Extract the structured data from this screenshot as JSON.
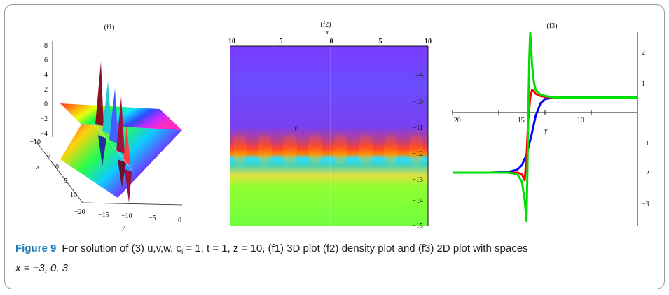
{
  "figure": {
    "label": "Figure 9",
    "caption_line1": "For solution of (3) u,v,w, c",
    "caption_sub": "i",
    "caption_line1b": " = 1, t = 1, z = 10, (f1) 3D plot (f2) density plot and (f3) 2D plot with spaces",
    "caption_line2": "x = −3, 0, 3"
  },
  "panels": {
    "f1": {
      "title": "(f1)",
      "z_ticks": [
        "8",
        "6",
        "4",
        "2",
        "0",
        "−2",
        "−4"
      ],
      "x_ticks": [
        "−10",
        "−5",
        "0",
        "5",
        "10"
      ],
      "y_ticks": [
        "−20",
        "−15",
        "−10",
        "−5",
        "0"
      ],
      "x_label": "x",
      "y_label": "y"
    },
    "f2": {
      "title": "(f2)",
      "x_label": "x",
      "y_label": "y",
      "x_ticks": [
        "−10",
        "−5",
        "0",
        "5",
        "10"
      ],
      "y_ticks": [
        "−9",
        "−10",
        "−11",
        "−12",
        "−13",
        "−14",
        "−15"
      ]
    },
    "f3": {
      "title": "(f3)",
      "x_label": "y",
      "x_ticks": [
        "−20",
        "−15",
        "−10"
      ],
      "y_ticks": [
        "2",
        "1",
        "−1",
        "−2",
        "−3"
      ]
    }
  },
  "chart_data": [
    {
      "type": "surface3d",
      "title": "(f1)",
      "xlabel": "x",
      "ylabel": "y",
      "xlim": [
        -10,
        10
      ],
      "ylim": [
        -20,
        0
      ],
      "zlim": [
        -4,
        8
      ]
    },
    {
      "type": "heatmap",
      "title": "(f2)",
      "xlabel": "x",
      "ylabel": "y",
      "xlim": [
        -10,
        10
      ],
      "ylim": [
        -15,
        -8.2
      ]
    },
    {
      "type": "line",
      "title": "(f3)",
      "xlabel": "y",
      "xlim": [
        -20,
        0
      ],
      "ylim": [
        -3.7,
        2.7
      ],
      "series": [
        {
          "color": "#0000ff",
          "x": [
            -20,
            -16,
            -14,
            -13,
            -12.5,
            -12,
            -11.5,
            -11,
            -10.5,
            -10,
            -9,
            -8,
            -5,
            0
          ],
          "values": [
            -2.0,
            -2.0,
            -1.98,
            -1.9,
            -1.75,
            -1.4,
            -0.8,
            -0.1,
            0.3,
            0.45,
            0.5,
            0.5,
            0.5,
            0.5
          ]
        },
        {
          "color": "#ff0000",
          "x": [
            -20,
            -14,
            -13,
            -12.5,
            -12.2,
            -12,
            -11.8,
            -11.6,
            -11.4,
            -11.2,
            -11,
            -10.5,
            -10,
            -9,
            -8,
            0
          ],
          "values": [
            -2.0,
            -2.0,
            -2.0,
            -2.05,
            -2.25,
            -1.5,
            -0.2,
            0.5,
            0.75,
            0.7,
            0.62,
            0.55,
            0.52,
            0.5,
            0.5,
            0.5
          ]
        },
        {
          "color": "#00dd00",
          "x": [
            -20,
            -14,
            -13,
            -12.5,
            -12.2,
            -12.0,
            -11.9,
            -11.8,
            -11.7,
            -11.6,
            -11.5,
            -11.4,
            -11.2,
            -11,
            -10.5,
            -10,
            -9,
            -8,
            0
          ],
          "values": [
            -2.0,
            -2.0,
            -2.05,
            -2.3,
            -2.9,
            -3.6,
            -2.0,
            0.0,
            1.8,
            2.65,
            2.2,
            1.6,
            1.0,
            0.75,
            0.6,
            0.55,
            0.5,
            0.5,
            0.5
          ]
        }
      ]
    }
  ]
}
